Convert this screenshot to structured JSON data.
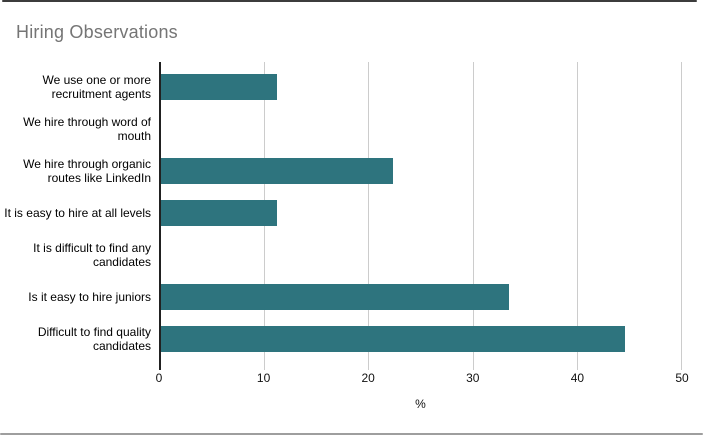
{
  "frame": {
    "background": "#ffffff",
    "top_border_color": "#3c3c3c",
    "bottom_border_color": "#9e9e9e"
  },
  "chart": {
    "title_color": "#757575",
    "bar_color": "#2e747e",
    "gridline_color": "#cccccc",
    "axis_line_color": "#212121",
    "label_color": "#000000"
  },
  "chart_data": {
    "type": "bar",
    "orientation": "horizontal",
    "title": "Hiring Observations",
    "categories": [
      "We use one or more recruitment agents",
      "We hire through word of mouth",
      "We hire through organic routes like LinkedIn",
      "It is easy to hire at all levels",
      "It is difficult to find any candidates",
      "Is it easy to hire juniors",
      "Difficult to find quality candidates"
    ],
    "values": [
      11.1,
      0,
      22.2,
      11.1,
      0,
      33.3,
      44.4
    ],
    "xlabel": "%",
    "xlim": [
      0,
      50
    ],
    "xticks": [
      0,
      10,
      20,
      30,
      40,
      50
    ],
    "grid": true,
    "legend": "none"
  }
}
